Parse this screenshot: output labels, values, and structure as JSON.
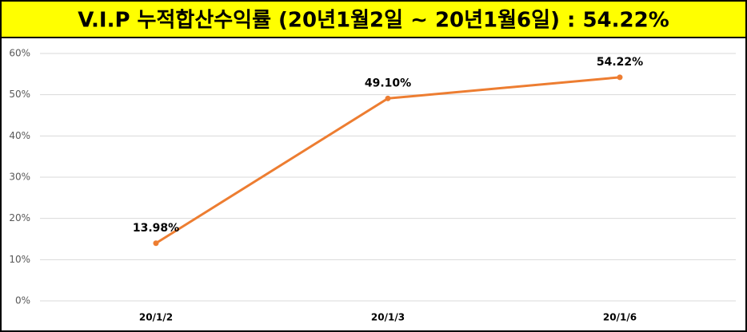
{
  "chart_data": {
    "type": "line",
    "title": "V.I.P 누적합산수익률 (20년1월2일 ~ 20년1월6일) : 54.22%",
    "categories": [
      "20/1/2",
      "20/1/3",
      "20/1/6"
    ],
    "series": [
      {
        "name": "누적합산수익률",
        "color": "#ed7d31",
        "values": [
          13.98,
          49.1,
          54.22
        ],
        "value_labels": [
          "13.98%",
          "49.10%",
          "54.22%"
        ]
      }
    ],
    "ylim": [
      0,
      60
    ],
    "yticks": [
      {
        "value": 0,
        "label": "0%"
      },
      {
        "value": 10,
        "label": "10%"
      },
      {
        "value": 20,
        "label": "20%"
      },
      {
        "value": 30,
        "label": "30%"
      },
      {
        "value": 40,
        "label": "40%"
      },
      {
        "value": 50,
        "label": "50%"
      },
      {
        "value": 60,
        "label": "60%"
      }
    ],
    "grid": true,
    "title_background": "#ffff00"
  }
}
